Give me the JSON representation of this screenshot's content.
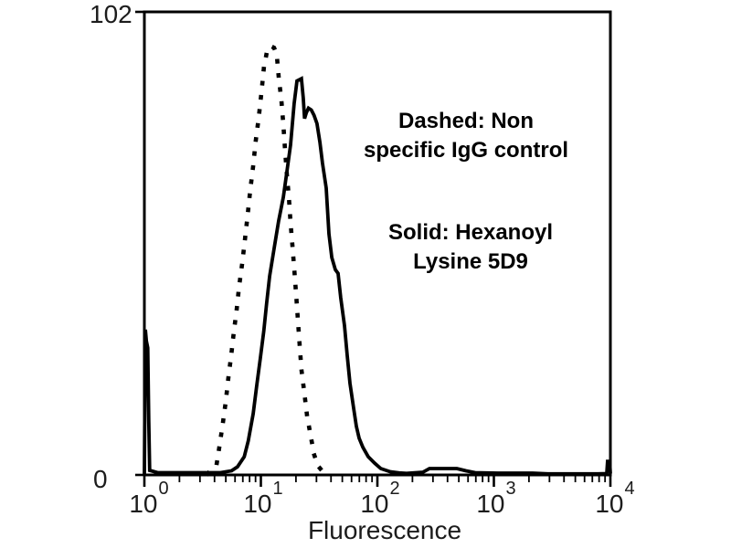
{
  "figure": {
    "background_color": "#ffffff",
    "curve_color": "#000000",
    "label_color": "#1c1c1c"
  },
  "chart_data": {
    "type": "line",
    "subtype": "flow-cytometry-histogram",
    "title": "",
    "xlabel": "Fluorescence",
    "ylabel": "",
    "xscale": "log",
    "xlim": [
      1,
      10000
    ],
    "ylim": [
      0,
      102
    ],
    "grid": false,
    "legend_position": "annotations-inside-plot",
    "y_tick_labels": [
      "102",
      "0"
    ],
    "x_major_ticks": [
      1,
      10,
      100,
      1000,
      10000
    ],
    "x_minor_ticks": "2-9 within each decade",
    "x_tick_labels": [
      {
        "base": "10",
        "exp": "0"
      },
      {
        "base": "10",
        "exp": "1"
      },
      {
        "base": "10",
        "exp": "2"
      },
      {
        "base": "10",
        "exp": "3"
      },
      {
        "base": "10",
        "exp": "4"
      }
    ],
    "annotations": [
      {
        "lines": [
          "Dashed: Non",
          "specific IgG control"
        ]
      },
      {
        "lines": [
          "Solid: Hexanoyl",
          "Lysine 5D9"
        ]
      }
    ],
    "series": [
      {
        "name": "Non specific IgG control",
        "style": "dotted",
        "color": "#000000",
        "points": [
          [
            3.5,
            0.3
          ],
          [
            4.17,
            2.4
          ],
          [
            4.4,
            6.1
          ],
          [
            4.7,
            11.1
          ],
          [
            5.0,
            16.2
          ],
          [
            5.25,
            21.2
          ],
          [
            5.56,
            26.3
          ],
          [
            5.85,
            31.3
          ],
          [
            6.2,
            36.4
          ],
          [
            6.5,
            41.4
          ],
          [
            6.9,
            46.5
          ],
          [
            7.3,
            51.9
          ],
          [
            7.7,
            57.2
          ],
          [
            8.1,
            62.6
          ],
          [
            8.6,
            68.1
          ],
          [
            9.0,
            73.3
          ],
          [
            9.6,
            78.8
          ],
          [
            10.1,
            84.2
          ],
          [
            10.6,
            89.5
          ],
          [
            11.2,
            92.9
          ],
          [
            12.1,
            94.5
          ],
          [
            13.0,
            94.1
          ],
          [
            13.7,
            92.5
          ],
          [
            14.2,
            87.9
          ],
          [
            15.0,
            82.4
          ],
          [
            15.6,
            77.2
          ],
          [
            16.1,
            71.7
          ],
          [
            16.7,
            66.3
          ],
          [
            17.4,
            61.0
          ],
          [
            18.0,
            55.5
          ],
          [
            18.7,
            50.1
          ],
          [
            19.4,
            44.9
          ],
          [
            20.1,
            39.4
          ],
          [
            20.8,
            33.9
          ],
          [
            21.5,
            28.7
          ],
          [
            22.3,
            23.2
          ],
          [
            23.6,
            18.2
          ],
          [
            24.9,
            13.1
          ],
          [
            26.8,
            8.5
          ],
          [
            28.7,
            4.4
          ],
          [
            30.9,
            2.0
          ],
          [
            33.8,
            0.8
          ],
          [
            38.2,
            0.3
          ]
        ]
      },
      {
        "name": "Hexanoyl Lysine 5D9",
        "style": "solid",
        "color": "#000000",
        "points": [
          [
            1.0,
            0
          ],
          [
            1.02,
            32
          ],
          [
            1.04,
            29.5
          ],
          [
            1.07,
            28
          ],
          [
            1.09,
            12
          ],
          [
            1.11,
            1
          ],
          [
            1.3,
            0.5
          ],
          [
            2,
            0.5
          ],
          [
            3,
            0.5
          ],
          [
            4.5,
            0.5
          ],
          [
            5.6,
            0.9
          ],
          [
            6.3,
            1.8
          ],
          [
            7.2,
            4
          ],
          [
            7.8,
            7.5
          ],
          [
            8.6,
            13.5
          ],
          [
            9.2,
            19.6
          ],
          [
            9.9,
            25.7
          ],
          [
            10.6,
            31.7
          ],
          [
            11.2,
            37.8
          ],
          [
            11.9,
            43.8
          ],
          [
            13,
            49.9
          ],
          [
            14.2,
            55.9
          ],
          [
            15.6,
            61.2
          ],
          [
            16.7,
            66.7
          ],
          [
            18,
            72.7
          ],
          [
            19.3,
            81.8
          ],
          [
            20.4,
            86.8
          ],
          [
            22.3,
            87.3
          ],
          [
            23.1,
            83
          ],
          [
            23.7,
            78.5
          ],
          [
            24.6,
            79.8
          ],
          [
            25.6,
            80.8
          ],
          [
            27.1,
            80.4
          ],
          [
            28.6,
            79.2
          ],
          [
            30.3,
            77.4
          ],
          [
            32.1,
            73.3
          ],
          [
            33.8,
            68.7
          ],
          [
            36.4,
            63.2
          ],
          [
            38.4,
            53.1
          ],
          [
            40.6,
            47.9
          ],
          [
            43.6,
            45.2
          ],
          [
            46,
            44.4
          ],
          [
            48.5,
            39
          ],
          [
            52.2,
            32.9
          ],
          [
            55.1,
            26.3
          ],
          [
            58.2,
            20.2
          ],
          [
            62.5,
            14.7
          ],
          [
            66,
            10.7
          ],
          [
            69.7,
            8.1
          ],
          [
            75,
            6.1
          ],
          [
            83.5,
            4
          ],
          [
            94.7,
            2.6
          ],
          [
            107,
            1.4
          ],
          [
            129,
            0.7
          ],
          [
            154,
            0.45
          ],
          [
            178,
            0.35
          ],
          [
            246,
            0.6
          ],
          [
            280,
            1.4
          ],
          [
            380,
            1.4
          ],
          [
            481,
            1.4
          ],
          [
            577,
            0.9
          ],
          [
            690,
            0.5
          ],
          [
            1075,
            0.4
          ],
          [
            2142,
            0.4
          ],
          [
            2900,
            0.25
          ],
          [
            7800,
            0.25
          ],
          [
            9300,
            0.3
          ],
          [
            9450,
            3
          ],
          [
            9850,
            3
          ],
          [
            10000,
            0.3
          ]
        ]
      }
    ]
  }
}
